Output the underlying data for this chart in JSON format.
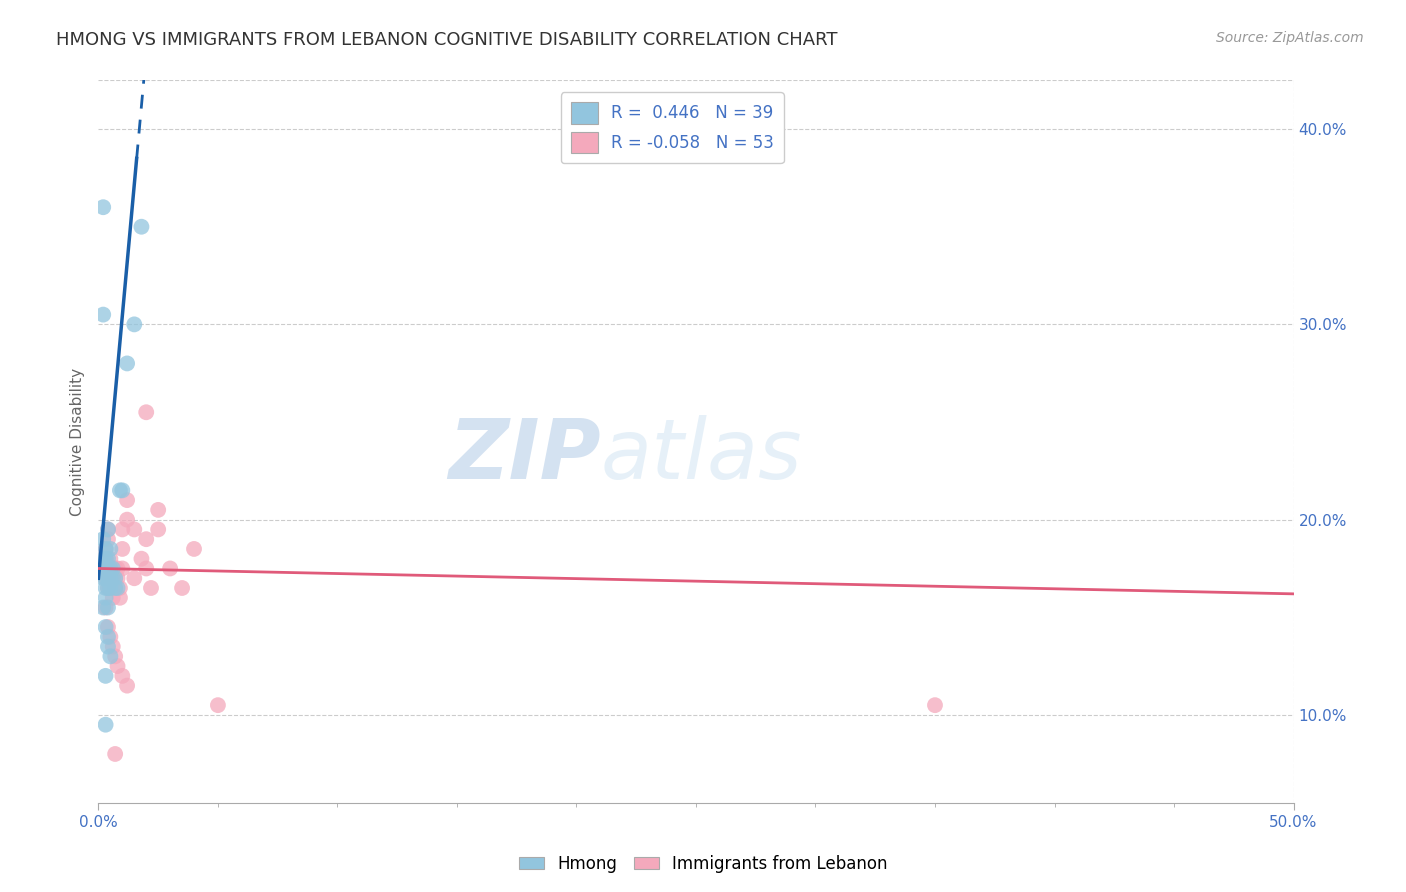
{
  "title": "HMONG VS IMMIGRANTS FROM LEBANON COGNITIVE DISABILITY CORRELATION CHART",
  "source": "Source: ZipAtlas.com",
  "ylabel": "Cognitive Disability",
  "xlabel": "",
  "xlim": [
    0.0,
    0.5
  ],
  "ylim": [
    0.055,
    0.425
  ],
  "background_color": "#ffffff",
  "watermark_zip": "ZIP",
  "watermark_atlas": "atlas",
  "legend_r1": "R =  0.446   N = 39",
  "legend_r2": "R = -0.058   N = 53",
  "hmong_color": "#92c5de",
  "lebanon_color": "#f4a9bc",
  "trend_blue": "#1a5fa8",
  "trend_pink": "#e05a7a",
  "hmong_scatter": [
    [
      0.002,
      0.175
    ],
    [
      0.002,
      0.18
    ],
    [
      0.002,
      0.19
    ],
    [
      0.002,
      0.17
    ],
    [
      0.003,
      0.175
    ],
    [
      0.003,
      0.18
    ],
    [
      0.003,
      0.185
    ],
    [
      0.003,
      0.17
    ],
    [
      0.003,
      0.165
    ],
    [
      0.003,
      0.16
    ],
    [
      0.004,
      0.175
    ],
    [
      0.004,
      0.17
    ],
    [
      0.004,
      0.18
    ],
    [
      0.004,
      0.165
    ],
    [
      0.004,
      0.195
    ],
    [
      0.005,
      0.175
    ],
    [
      0.005,
      0.17
    ],
    [
      0.005,
      0.165
    ],
    [
      0.005,
      0.185
    ],
    [
      0.006,
      0.175
    ],
    [
      0.006,
      0.17
    ],
    [
      0.007,
      0.17
    ],
    [
      0.007,
      0.165
    ],
    [
      0.008,
      0.165
    ],
    [
      0.009,
      0.215
    ],
    [
      0.01,
      0.215
    ],
    [
      0.012,
      0.28
    ],
    [
      0.015,
      0.3
    ],
    [
      0.018,
      0.35
    ],
    [
      0.003,
      0.145
    ],
    [
      0.004,
      0.14
    ],
    [
      0.004,
      0.135
    ],
    [
      0.005,
      0.13
    ],
    [
      0.003,
      0.12
    ],
    [
      0.003,
      0.095
    ],
    [
      0.002,
      0.155
    ],
    [
      0.004,
      0.155
    ],
    [
      0.002,
      0.36
    ],
    [
      0.002,
      0.305
    ]
  ],
  "lebanon_scatter": [
    [
      0.002,
      0.18
    ],
    [
      0.002,
      0.175
    ],
    [
      0.003,
      0.175
    ],
    [
      0.003,
      0.17
    ],
    [
      0.003,
      0.18
    ],
    [
      0.003,
      0.185
    ],
    [
      0.004,
      0.175
    ],
    [
      0.004,
      0.165
    ],
    [
      0.004,
      0.19
    ],
    [
      0.004,
      0.195
    ],
    [
      0.005,
      0.17
    ],
    [
      0.005,
      0.175
    ],
    [
      0.005,
      0.165
    ],
    [
      0.005,
      0.18
    ],
    [
      0.006,
      0.17
    ],
    [
      0.006,
      0.175
    ],
    [
      0.006,
      0.165
    ],
    [
      0.006,
      0.16
    ],
    [
      0.007,
      0.175
    ],
    [
      0.007,
      0.17
    ],
    [
      0.007,
      0.165
    ],
    [
      0.008,
      0.175
    ],
    [
      0.008,
      0.17
    ],
    [
      0.009,
      0.165
    ],
    [
      0.009,
      0.16
    ],
    [
      0.01,
      0.195
    ],
    [
      0.01,
      0.175
    ],
    [
      0.01,
      0.185
    ],
    [
      0.012,
      0.21
    ],
    [
      0.012,
      0.2
    ],
    [
      0.015,
      0.195
    ],
    [
      0.015,
      0.17
    ],
    [
      0.018,
      0.18
    ],
    [
      0.02,
      0.175
    ],
    [
      0.02,
      0.19
    ],
    [
      0.022,
      0.165
    ],
    [
      0.025,
      0.205
    ],
    [
      0.025,
      0.195
    ],
    [
      0.03,
      0.175
    ],
    [
      0.035,
      0.165
    ],
    [
      0.04,
      0.185
    ],
    [
      0.003,
      0.155
    ],
    [
      0.004,
      0.145
    ],
    [
      0.005,
      0.14
    ],
    [
      0.006,
      0.135
    ],
    [
      0.007,
      0.13
    ],
    [
      0.008,
      0.125
    ],
    [
      0.01,
      0.12
    ],
    [
      0.012,
      0.115
    ],
    [
      0.02,
      0.255
    ],
    [
      0.007,
      0.08
    ],
    [
      0.05,
      0.105
    ],
    [
      0.35,
      0.105
    ]
  ],
  "xtick_left": "0.0%",
  "xtick_right": "50.0%",
  "yticks": [
    0.1,
    0.2,
    0.3,
    0.4
  ],
  "ytick_labels": [
    "10.0%",
    "20.0%",
    "30.0%",
    "40.0%"
  ],
  "grid_color": "#cccccc",
  "title_color": "#333333",
  "axis_color": "#666666",
  "tick_color": "#4472c4",
  "source_color": "#999999"
}
